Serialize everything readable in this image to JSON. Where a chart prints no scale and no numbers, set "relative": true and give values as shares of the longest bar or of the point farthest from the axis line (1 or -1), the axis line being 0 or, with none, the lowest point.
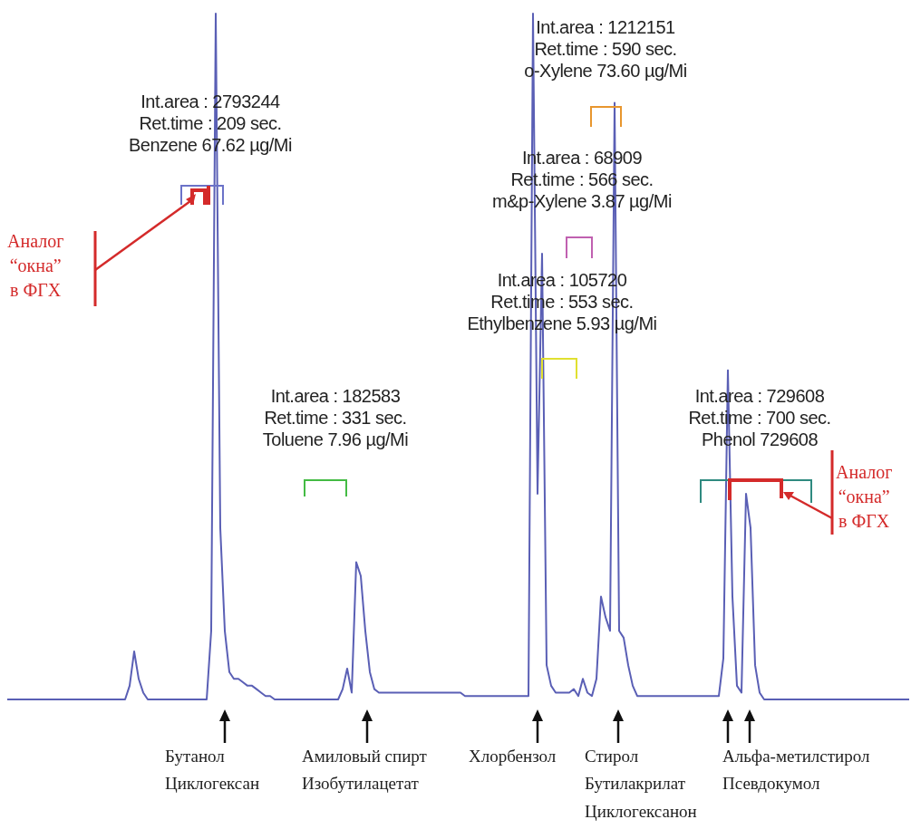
{
  "chart_data": {
    "type": "line",
    "relative": true,
    "marker": "none",
    "categories": [
      null,
      null,
      null,
      null,
      null,
      null,
      null,
      null,
      null,
      null,
      null,
      null,
      null,
      null,
      null,
      null,
      null,
      null,
      null,
      null,
      null,
      null,
      null,
      null,
      null,
      null,
      null,
      null,
      null,
      null,
      null,
      null,
      null,
      null,
      null,
      null,
      null,
      null,
      null,
      null,
      null,
      null,
      null,
      null,
      null,
      null,
      null,
      null,
      null,
      null,
      null,
      null,
      null,
      null,
      null,
      null,
      null,
      null,
      null,
      null,
      null,
      null,
      null,
      null,
      null,
      null,
      null,
      null,
      null,
      null,
      null,
      null,
      null,
      null,
      null,
      null,
      null,
      null,
      null,
      null,
      null,
      null,
      null,
      null,
      null,
      null,
      null,
      null,
      null,
      null,
      null,
      null,
      null,
      null,
      null,
      null,
      null,
      null,
      null,
      null,
      null,
      null,
      null,
      null,
      null,
      null,
      null,
      null,
      null,
      null,
      null,
      null,
      null,
      null,
      null,
      null,
      null,
      null,
      null,
      null,
      null,
      null,
      null,
      null,
      null,
      null,
      null,
      null,
      null,
      null,
      null,
      null,
      null,
      null,
      null,
      null,
      null,
      null,
      null,
      null,
      null,
      null,
      null,
      null,
      null,
      null,
      null,
      null,
      null,
      null,
      null,
      null,
      null,
      null,
      null,
      null,
      null,
      null,
      null,
      null,
      null,
      null,
      null,
      null,
      null,
      null,
      null,
      null,
      null,
      null,
      null,
      null,
      null,
      null,
      null,
      null,
      null,
      null,
      null,
      null,
      null,
      null,
      null,
      null,
      null,
      null,
      null,
      null,
      null,
      null,
      null,
      null,
      null,
      null,
      null,
      null,
      null,
      null,
      null,
      null
    ],
    "series": [
      {
        "color": "#5a5fb5",
        "values": [
          0,
          0,
          0,
          0,
          0,
          0,
          0,
          0,
          0,
          0,
          0,
          0,
          0,
          0,
          0,
          0,
          0,
          0,
          0,
          0,
          0,
          0,
          0,
          0,
          0,
          0,
          0,
          0.02,
          0.07,
          0.03,
          0.01,
          0,
          0,
          0,
          0,
          0,
          0,
          0,
          0,
          0,
          0,
          0,
          0,
          0,
          0,
          0.1,
          1,
          0.25,
          0.1,
          0.04,
          0.03,
          0.03,
          0.025,
          0.02,
          0.02,
          0.015,
          0.01,
          0.005,
          0.005,
          0,
          0,
          0,
          0,
          0,
          0,
          0,
          0,
          0,
          0,
          0,
          0,
          0,
          0,
          0,
          0.015,
          0.045,
          0.01,
          0.2,
          0.18,
          0.1,
          0.04,
          0.015,
          0.01,
          0.01,
          0.01,
          0.01,
          0.01,
          0.01,
          0.01,
          0.01,
          0.01,
          0.01,
          0.01,
          0.01,
          0.01,
          0.01,
          0.01,
          0.01,
          0.01,
          0.01,
          0.01,
          0.005,
          0.005,
          0.005,
          0.005,
          0.005,
          0.005,
          0.005,
          0.005,
          0.005,
          0.005,
          0.005,
          0.005,
          0.005,
          0.005,
          0.005,
          1,
          0.3,
          0.65,
          0.05,
          0.02,
          0.01,
          0.01,
          0.01,
          0.01,
          0.015,
          0.005,
          0.03,
          0.01,
          0.005,
          0.03,
          0.15,
          0.12,
          0.1,
          0.87,
          0.1,
          0.09,
          0.05,
          0.02,
          0.005,
          0.005,
          0.005,
          0.005,
          0.005,
          0.005,
          0.005,
          0.005,
          0.005,
          0.005,
          0.005,
          0.005,
          0.005,
          0.005,
          0.005,
          0.005,
          0.005,
          0.005,
          0.005,
          0.06,
          0.48,
          0.15,
          0.02,
          0.01,
          0.3,
          0.25,
          0.05,
          0.01,
          0,
          0,
          0,
          0,
          0,
          0,
          0,
          0,
          0,
          0,
          0,
          0,
          0,
          0,
          0,
          0,
          0,
          0,
          0,
          0,
          0,
          0,
          0,
          0,
          0,
          0,
          0,
          0,
          0,
          0,
          0,
          0,
          0
        ]
      }
    ],
    "annotations": [
      "Int.area : 2793244\nRet.time : 209 sec.\nBenzene 67.62 µg/Mi",
      "Int.area : 182583\nRet.time : 331 sec.\nToluene 7.96 µg/Mi",
      "Int.area : 1212151\nRet.time : 590 sec.\no-Xylene 73.60 µg/Mi",
      "Int.area : 68909\nRet.time : 566 sec.\nm&p-Xylene 3.87 µg/Mi",
      "Int.area : 105720\nRet.time : 553 sec.\nEthylbenzene 5.93 µg/Mi",
      "Int.area : 729608\nRet.time : 700 sec.\nPhenol 729608",
      "Аналог\n“окна”\nв ФГХ",
      "Аналог\n“окна”\nв ФГХ",
      "Бутанол\nЦиклогексан",
      "Амиловый спирт\nИзобутилацетат",
      "Хлорбензол",
      "Стирол\nБутилакрилат\nЦиклогексанон",
      "Альфа-метилстирол\nПсевдокумол"
    ]
  }
}
